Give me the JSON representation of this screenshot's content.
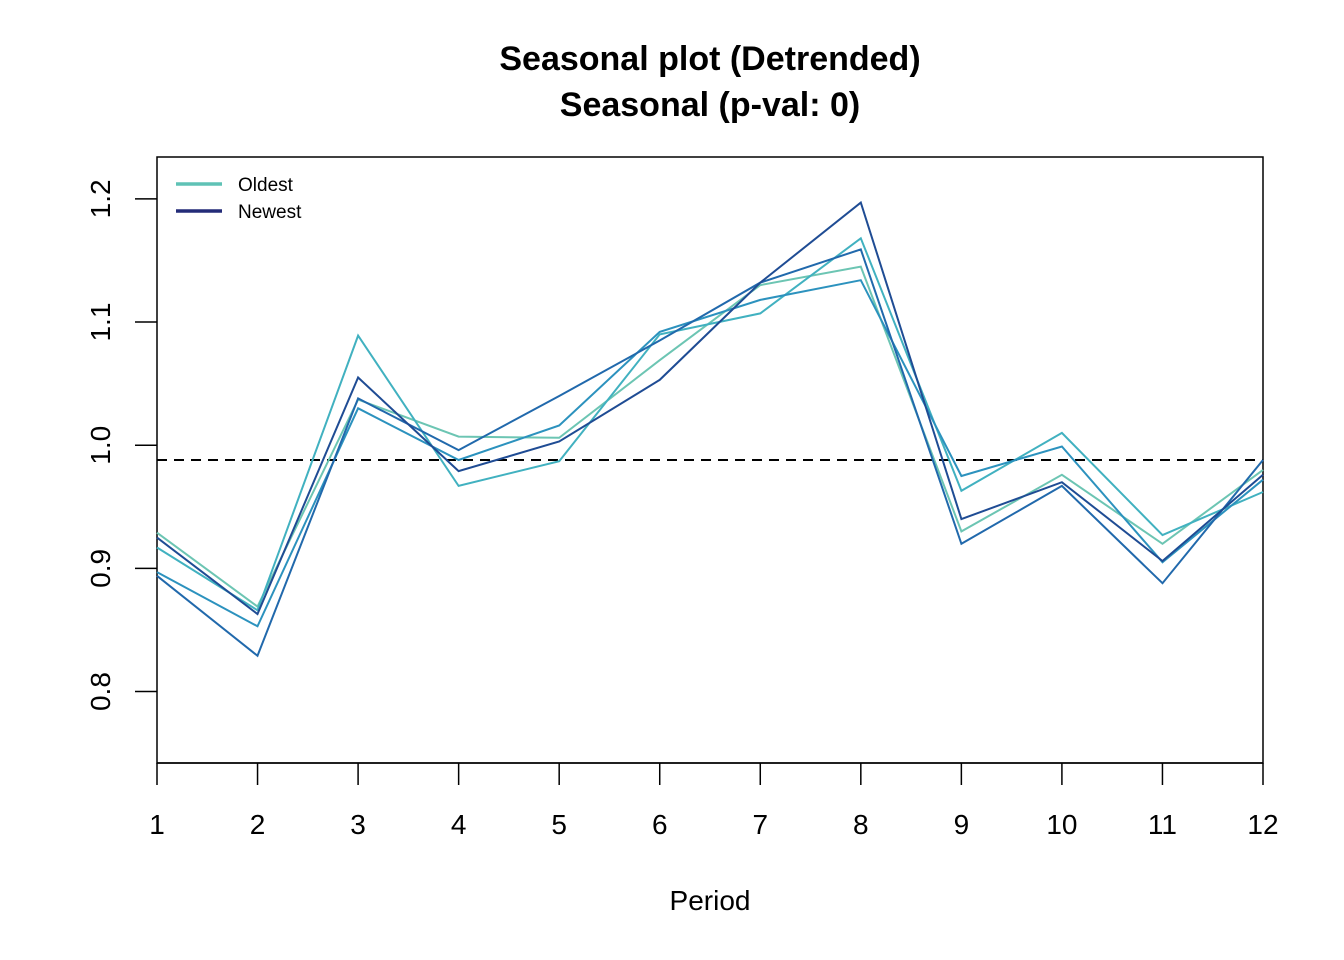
{
  "chart_data": {
    "type": "line",
    "title": "Seasonal plot (Detrended)",
    "subtitle": "Seasonal (p-val: 0)",
    "xlabel": "Period",
    "ylabel": "",
    "x": [
      1,
      2,
      3,
      4,
      5,
      6,
      7,
      8,
      9,
      10,
      11,
      12
    ],
    "x_tick_labels": [
      "1",
      "2",
      "3",
      "4",
      "5",
      "6",
      "7",
      "8",
      "9",
      "10",
      "11",
      "12"
    ],
    "y_ticks": [
      0.8,
      0.9,
      1.0,
      1.1,
      1.2
    ],
    "y_tick_labels": [
      "0.8",
      "0.9",
      "1.0",
      "1.1",
      "1.2"
    ],
    "xlim": [
      1,
      12
    ],
    "ylim": [
      0.742,
      1.234
    ],
    "grid": false,
    "legend_position": "top-left",
    "legend": [
      {
        "label": "Oldest",
        "color": "#5fc2b5"
      },
      {
        "label": "Newest",
        "color": "#232c78"
      }
    ],
    "reference_line": {
      "y": 0.988,
      "style": "dashed",
      "color": "#000000"
    },
    "series": [
      {
        "color": "#6cc5b3",
        "values": [
          0.929,
          0.869,
          1.037,
          1.007,
          1.006,
          1.069,
          1.13,
          1.145,
          0.93,
          0.976,
          0.92,
          0.98
        ]
      },
      {
        "color": "#41b1c0",
        "values": [
          0.917,
          0.866,
          1.089,
          0.967,
          0.987,
          1.09,
          1.107,
          1.168,
          0.963,
          1.01,
          0.927,
          0.962
        ]
      },
      {
        "color": "#2c92be",
        "values": [
          0.897,
          0.853,
          1.03,
          0.988,
          1.016,
          1.092,
          1.118,
          1.134,
          0.975,
          0.999,
          0.905,
          0.972
        ]
      },
      {
        "color": "#2169ac",
        "values": [
          0.894,
          0.829,
          1.038,
          0.996,
          1.04,
          1.085,
          1.132,
          1.159,
          0.92,
          0.967,
          0.888,
          0.988
        ]
      },
      {
        "color": "#1f4c94",
        "values": [
          0.925,
          0.863,
          1.055,
          0.979,
          1.003,
          1.053,
          1.132,
          1.197,
          0.94,
          0.97,
          0.906,
          0.976
        ]
      }
    ]
  }
}
